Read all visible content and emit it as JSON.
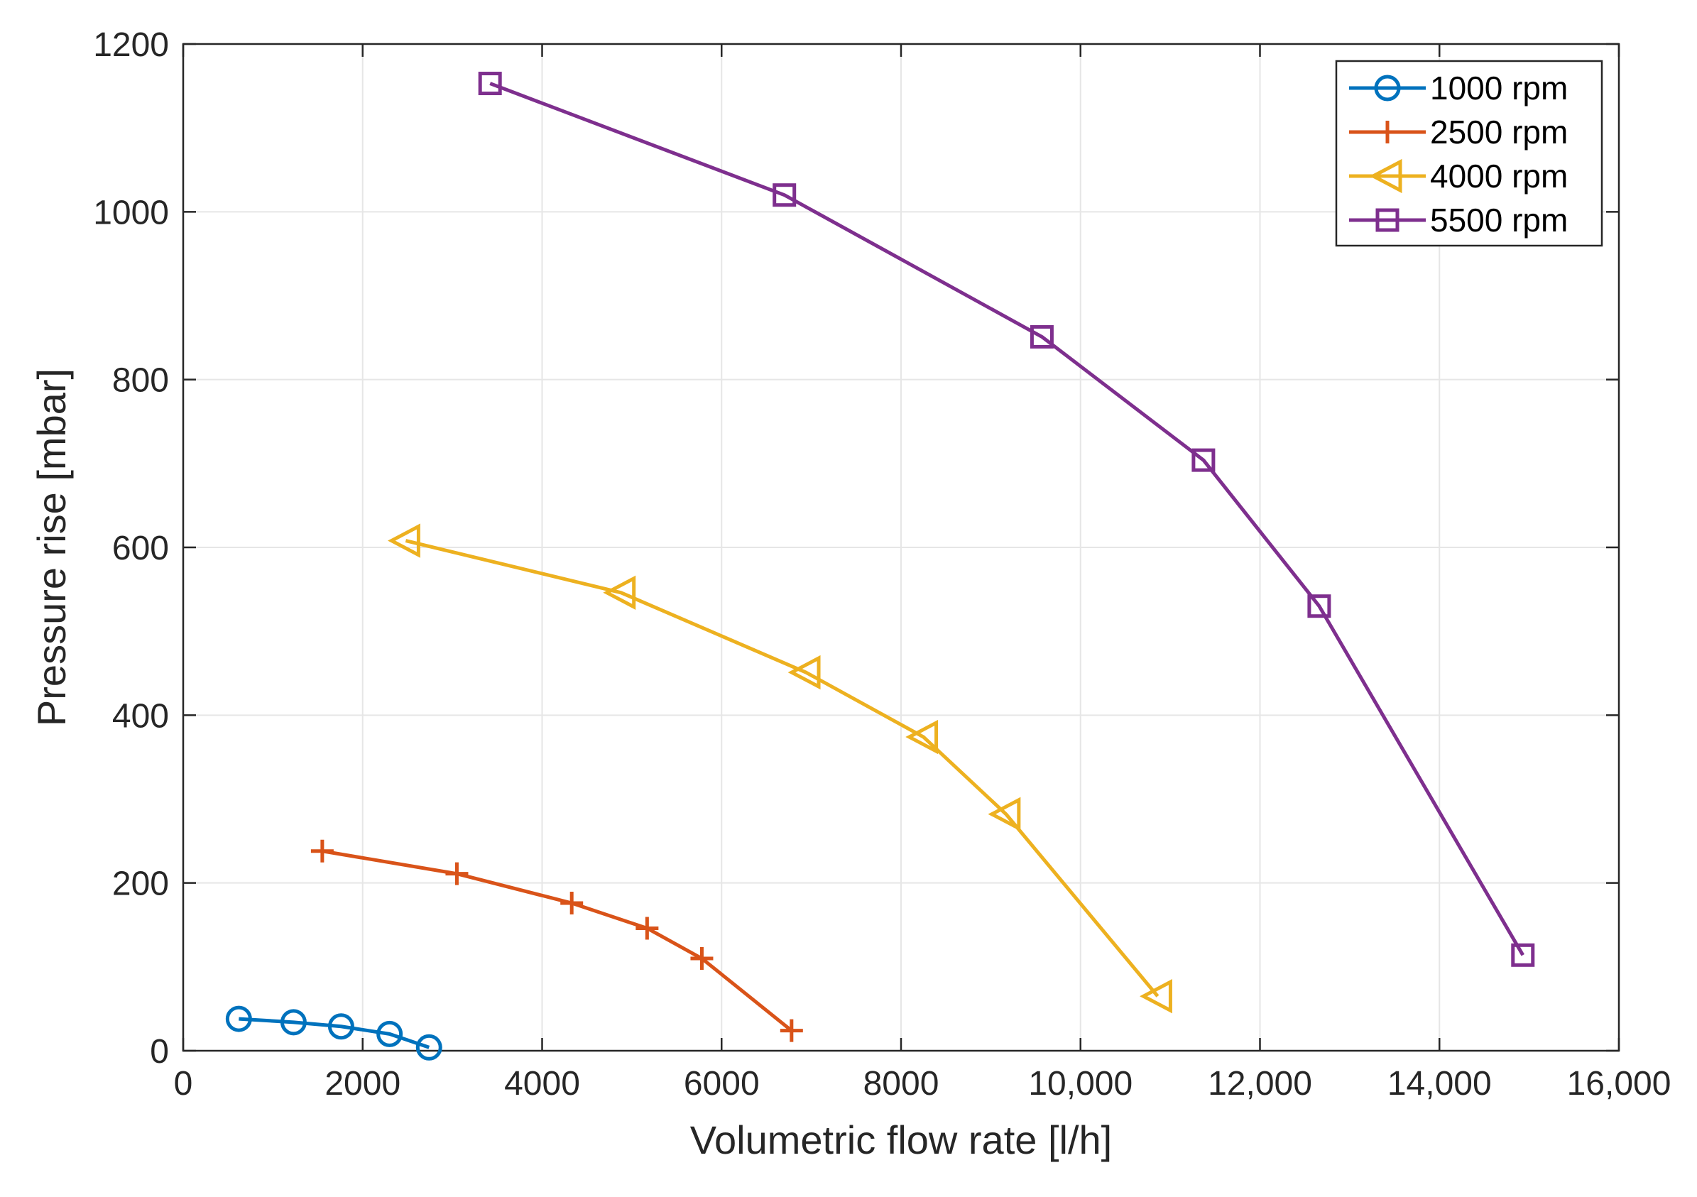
{
  "chart_data": {
    "type": "line",
    "title": "",
    "xlabel": "Volumetric flow rate [l/h]",
    "ylabel": "Pressure rise [mbar]",
    "xlim": [
      0,
      16000
    ],
    "ylim": [
      0,
      1200
    ],
    "xticks": [
      0,
      2000,
      4000,
      6000,
      8000,
      10000,
      12000,
      14000,
      16000
    ],
    "xtick_labels": [
      "0",
      "2000",
      "4000",
      "6000",
      "8000",
      "10,000",
      "12,000",
      "14,000",
      "16,000"
    ],
    "yticks": [
      0,
      200,
      400,
      600,
      800,
      1000,
      1200
    ],
    "ytick_labels": [
      "0",
      "200",
      "400",
      "600",
      "800",
      "1000",
      "1200"
    ],
    "grid": true,
    "legend_position": "top-right",
    "series": [
      {
        "name": "1000  rpm",
        "color": "#0072BD",
        "marker": "circle",
        "x": [
          620,
          1230,
          1760,
          2300,
          2740
        ],
        "y": [
          38,
          34,
          29,
          20,
          4
        ]
      },
      {
        "name": "2500  rpm",
        "color": "#D95319",
        "marker": "plus",
        "x": [
          1550,
          3050,
          4330,
          5170,
          5780,
          6780
        ],
        "y": [
          238,
          211,
          176,
          146,
          110,
          24
        ]
      },
      {
        "name": "4000  rpm",
        "color": "#EDB120",
        "marker": "triangle-left",
        "x": [
          2480,
          4880,
          6940,
          8250,
          9170,
          10860
        ],
        "y": [
          608,
          546,
          451,
          374,
          282,
          65
        ]
      },
      {
        "name": "5500  rpm",
        "color": "#7E2F8E",
        "marker": "square",
        "x": [
          3420,
          6700,
          9570,
          11370,
          12660,
          14930
        ],
        "y": [
          1153,
          1020,
          851,
          704,
          530,
          114
        ]
      }
    ]
  }
}
